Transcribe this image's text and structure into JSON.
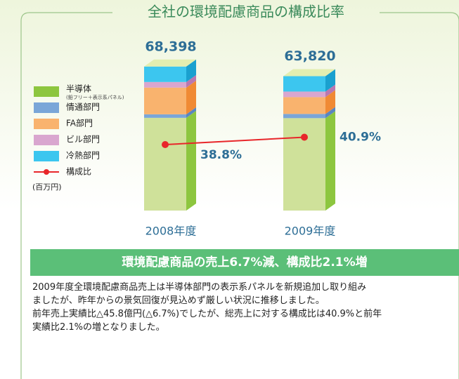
{
  "chart_data": {
    "type": "stacked_bar_line",
    "title": "全社の環境配慮商品の構成比率",
    "unit": "(百万円)",
    "categories": [
      "2008年度",
      "2009年度"
    ],
    "totals": [
      68398,
      63820
    ],
    "total_labels": [
      "68,398",
      "63,820"
    ],
    "series": [
      {
        "name": "半導体",
        "note": "(鉛フリー＋表示系パネル)",
        "color": "#cfe19a",
        "side_color": "#8dc63f",
        "values": [
          44038,
          43890
        ]
      },
      {
        "name": "情通部門",
        "color": "#7aa6d8",
        "side_color": "#5a86c0",
        "values": [
          1670,
          1990
        ]
      },
      {
        "name": "FA部門",
        "color": "#f9b36e",
        "side_color": "#f08a34",
        "values": [
          12680,
          7980
        ]
      },
      {
        "name": "ビル部門",
        "color": "#d9a6cf",
        "side_color": "#b978b0",
        "values": [
          2670,
          2660
        ]
      },
      {
        "name": "冷熱部門",
        "color": "#3cc6ef",
        "side_color": "#1aa0cf",
        "values": [
          7340,
          7300
        ]
      }
    ],
    "ratio": {
      "name": "構成比",
      "color": "#e8262a",
      "values": [
        38.8,
        40.9
      ],
      "value_labels": [
        "38.8%",
        "40.9%"
      ]
    }
  },
  "headline": "環境配慮商品の売上6.7%減、構成比2.1%増",
  "paragraph": [
    "2009年度全環境配慮商品売上は半導体部門の表示系パネルを新規追加し取り組み",
    "ましたが、昨年からの景気回復が見込めず厳しい状況に推移しました。",
    "前年売上実績比△45.8億円(△6.7%)でしたが、総売上に対する構成比は40.9%と前年",
    "実績比2.1%の増となりました。"
  ]
}
